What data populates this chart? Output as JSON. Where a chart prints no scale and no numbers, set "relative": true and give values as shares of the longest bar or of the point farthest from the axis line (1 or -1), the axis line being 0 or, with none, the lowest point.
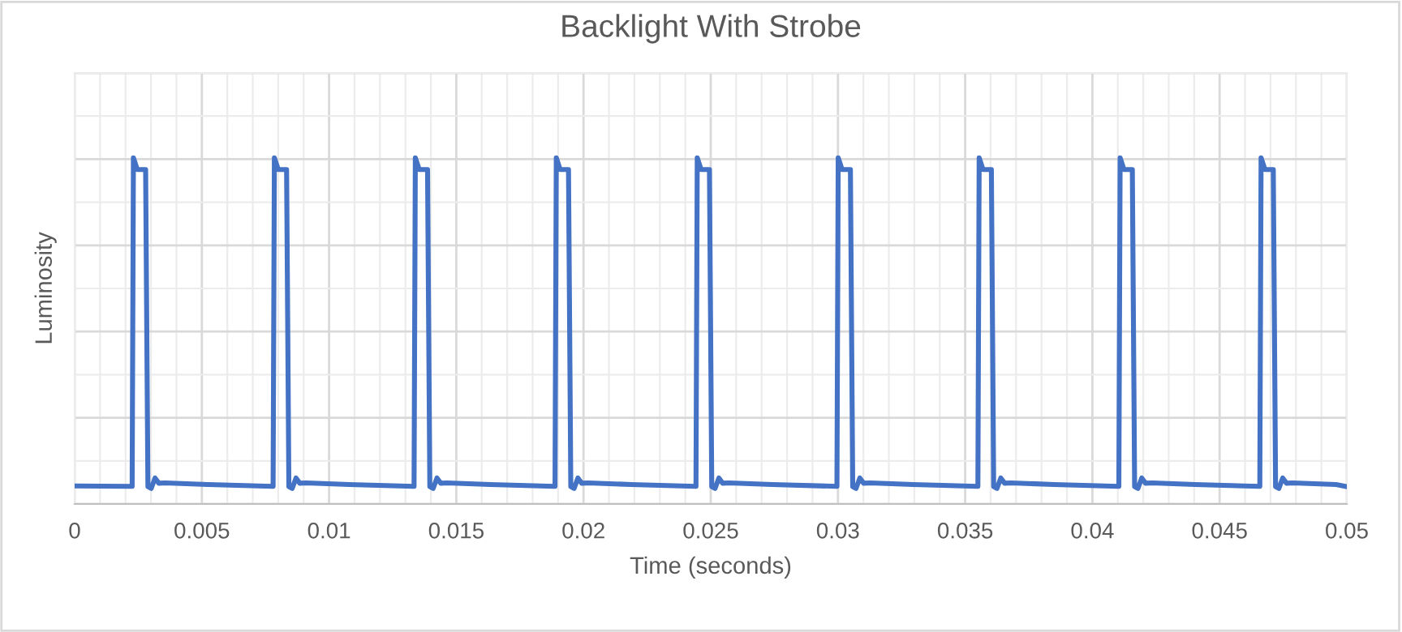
{
  "chart_data": {
    "type": "line",
    "title": "Backlight With Strobe",
    "xlabel": "Time (seconds)",
    "ylabel": "Luminosity",
    "relative": true,
    "grid": true,
    "tick_labels": "x",
    "marker": "none",
    "line_style": "solid",
    "xlim": [
      0,
      0.05
    ],
    "xticks": [
      0,
      0.005,
      0.01,
      0.015,
      0.02,
      0.025,
      0.03,
      0.035,
      0.04,
      0.045,
      0.05
    ],
    "series": [
      {
        "color": "#4472c4",
        "x": [
          0,
          0.00226,
          0.00231,
          0.00246,
          0.00279,
          0.00288,
          0.00301,
          0.00316,
          0.00331,
          0.00356,
          0.00526,
          0.0078,
          0.00785,
          0.008,
          0.00833,
          0.00842,
          0.00855,
          0.0087,
          0.00885,
          0.0091,
          0.0108,
          0.01334,
          0.01339,
          0.01354,
          0.01387,
          0.01396,
          0.01409,
          0.01424,
          0.01439,
          0.01464,
          0.01634,
          0.01888,
          0.01893,
          0.01908,
          0.01941,
          0.0195,
          0.01963,
          0.01978,
          0.01993,
          0.02018,
          0.02188,
          0.02442,
          0.02447,
          0.02462,
          0.02495,
          0.02504,
          0.02517,
          0.02532,
          0.02547,
          0.02572,
          0.02742,
          0.02996,
          0.03001,
          0.03016,
          0.03049,
          0.03058,
          0.03071,
          0.03086,
          0.03101,
          0.03126,
          0.03296,
          0.0355,
          0.03555,
          0.0357,
          0.03603,
          0.03612,
          0.03625,
          0.0364,
          0.03655,
          0.0368,
          0.0385,
          0.04104,
          0.04109,
          0.04124,
          0.04157,
          0.04166,
          0.04179,
          0.04194,
          0.04209,
          0.04234,
          0.04404,
          0.04658,
          0.04663,
          0.04678,
          0.04711,
          0.0472,
          0.04733,
          0.04748,
          0.04763,
          0.04788,
          0.04958,
          0.05
        ],
        "values": [
          0.052,
          0.051,
          1.0,
          0.966,
          0.966,
          0.05,
          0.045,
          0.075,
          0.06,
          0.061,
          0.056,
          0.051,
          1.0,
          0.966,
          0.966,
          0.05,
          0.045,
          0.075,
          0.06,
          0.061,
          0.056,
          0.051,
          1.0,
          0.966,
          0.966,
          0.05,
          0.045,
          0.075,
          0.06,
          0.061,
          0.056,
          0.051,
          1.0,
          0.966,
          0.966,
          0.05,
          0.045,
          0.075,
          0.06,
          0.061,
          0.056,
          0.051,
          1.0,
          0.966,
          0.966,
          0.05,
          0.045,
          0.075,
          0.06,
          0.061,
          0.056,
          0.051,
          1.0,
          0.966,
          0.966,
          0.05,
          0.045,
          0.075,
          0.06,
          0.061,
          0.056,
          0.051,
          1.0,
          0.966,
          0.966,
          0.05,
          0.045,
          0.075,
          0.06,
          0.061,
          0.056,
          0.051,
          1.0,
          0.966,
          0.966,
          0.05,
          0.045,
          0.075,
          0.06,
          0.061,
          0.056,
          0.051,
          1.0,
          0.966,
          0.966,
          0.05,
          0.045,
          0.075,
          0.06,
          0.061,
          0.056,
          0.05
        ]
      }
    ]
  }
}
